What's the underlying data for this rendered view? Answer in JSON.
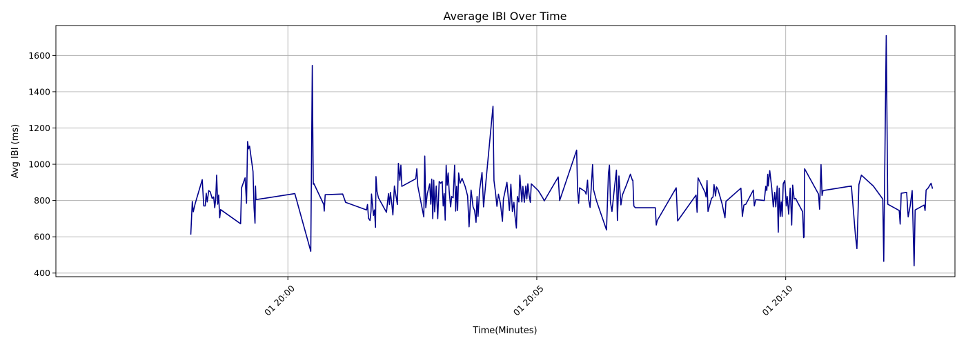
{
  "chart_data": {
    "type": "line",
    "title": "Average IBI Over Time",
    "xlabel": "Time(Minutes)",
    "ylabel": "Avg IBI (ms)",
    "grid": true,
    "legend": "none",
    "color": "#00008b",
    "xlim": [
      -4.66,
      13.4
    ],
    "ylim": [
      380,
      1765
    ],
    "x_ticks": [
      {
        "value": 0,
        "label": "01 20:00"
      },
      {
        "value": 5,
        "label": "01 20:05"
      },
      {
        "value": 10,
        "label": "01 20:10"
      }
    ],
    "y_ticks": [
      400,
      600,
      800,
      1000,
      1200,
      1400,
      1600
    ],
    "x_unit_note": "minutes relative to 01 20:00",
    "series": [
      {
        "name": "",
        "points": [
          [
            -1.95,
            612
          ],
          [
            -1.92,
            795
          ],
          [
            -1.9,
            738
          ],
          [
            -1.86,
            785
          ],
          [
            -1.72,
            915
          ],
          [
            -1.69,
            770
          ],
          [
            -1.66,
            770
          ],
          [
            -1.64,
            840
          ],
          [
            -1.62,
            792
          ],
          [
            -1.59,
            855
          ],
          [
            -1.56,
            848
          ],
          [
            -1.52,
            812
          ],
          [
            -1.49,
            820
          ],
          [
            -1.47,
            760
          ],
          [
            -1.45,
            808
          ],
          [
            -1.43,
            940
          ],
          [
            -1.41,
            780
          ],
          [
            -1.39,
            830
          ],
          [
            -1.37,
            705
          ],
          [
            -1.35,
            750
          ],
          [
            -0.95,
            672
          ],
          [
            -0.93,
            870
          ],
          [
            -0.86,
            925
          ],
          [
            -0.83,
            785
          ],
          [
            -0.81,
            1125
          ],
          [
            -0.79,
            1085
          ],
          [
            -0.77,
            1100
          ],
          [
            -0.7,
            960
          ],
          [
            -0.68,
            760
          ],
          [
            -0.66,
            675
          ],
          [
            -0.65,
            880
          ],
          [
            -0.64,
            805
          ],
          [
            0.14,
            838
          ],
          [
            0.46,
            520
          ],
          [
            0.49,
            1545
          ],
          [
            0.5,
            1200
          ],
          [
            0.51,
            890
          ],
          [
            0.52,
            895
          ],
          [
            0.72,
            778
          ],
          [
            0.73,
            742
          ],
          [
            0.75,
            832
          ],
          [
            1.1,
            836
          ],
          [
            1.16,
            790
          ],
          [
            1.58,
            748
          ],
          [
            1.6,
            778
          ],
          [
            1.62,
            702
          ],
          [
            1.65,
            690
          ],
          [
            1.67,
            742
          ],
          [
            1.68,
            836
          ],
          [
            1.72,
            718
          ],
          [
            1.74,
            748
          ],
          [
            1.76,
            652
          ],
          [
            1.77,
            932
          ],
          [
            1.79,
            850
          ],
          [
            1.82,
            815
          ],
          [
            1.98,
            735
          ],
          [
            2.02,
            838
          ],
          [
            2.04,
            778
          ],
          [
            2.06,
            845
          ],
          [
            2.09,
            775
          ],
          [
            2.11,
            720
          ],
          [
            2.14,
            880
          ],
          [
            2.2,
            778
          ],
          [
            2.22,
            1005
          ],
          [
            2.25,
            912
          ],
          [
            2.27,
            995
          ],
          [
            2.29,
            878
          ],
          [
            2.57,
            920
          ],
          [
            2.59,
            975
          ],
          [
            2.61,
            880
          ],
          [
            2.73,
            710
          ],
          [
            2.75,
            1045
          ],
          [
            2.77,
            760
          ],
          [
            2.8,
            836
          ],
          [
            2.85,
            892
          ],
          [
            2.87,
            780
          ],
          [
            2.89,
            918
          ],
          [
            2.91,
            700
          ],
          [
            2.93,
            912
          ],
          [
            2.95,
            738
          ],
          [
            2.98,
            880
          ],
          [
            3.01,
            700
          ],
          [
            3.04,
            905
          ],
          [
            3.07,
            895
          ],
          [
            3.1,
            905
          ],
          [
            3.12,
            770
          ],
          [
            3.14,
            838
          ],
          [
            3.16,
            692
          ],
          [
            3.18,
            995
          ],
          [
            3.2,
            885
          ],
          [
            3.22,
            952
          ],
          [
            3.24,
            850
          ],
          [
            3.27,
            765
          ],
          [
            3.29,
            822
          ],
          [
            3.32,
            815
          ],
          [
            3.35,
            995
          ],
          [
            3.37,
            742
          ],
          [
            3.39,
            878
          ],
          [
            3.41,
            745
          ],
          [
            3.43,
            952
          ],
          [
            3.46,
            895
          ],
          [
            3.5,
            922
          ],
          [
            3.56,
            878
          ],
          [
            3.61,
            825
          ],
          [
            3.64,
            655
          ],
          [
            3.68,
            858
          ],
          [
            3.72,
            765
          ],
          [
            3.75,
            745
          ],
          [
            3.78,
            680
          ],
          [
            3.8,
            822
          ],
          [
            3.82,
            712
          ],
          [
            3.85,
            855
          ],
          [
            3.9,
            955
          ],
          [
            3.93,
            765
          ],
          [
            4.12,
            1320
          ],
          [
            4.14,
            910
          ],
          [
            4.17,
            845
          ],
          [
            4.2,
            768
          ],
          [
            4.23,
            835
          ],
          [
            4.27,
            782
          ],
          [
            4.31,
            685
          ],
          [
            4.33,
            808
          ],
          [
            4.4,
            900
          ],
          [
            4.45,
            745
          ],
          [
            4.48,
            890
          ],
          [
            4.51,
            740
          ],
          [
            4.54,
            790
          ],
          [
            4.56,
            720
          ],
          [
            4.59,
            648
          ],
          [
            4.61,
            822
          ],
          [
            4.64,
            792
          ],
          [
            4.66,
            940
          ],
          [
            4.7,
            792
          ],
          [
            4.72,
            878
          ],
          [
            4.75,
            790
          ],
          [
            4.78,
            880
          ],
          [
            4.8,
            808
          ],
          [
            4.82,
            892
          ],
          [
            4.85,
            822
          ],
          [
            4.87,
            790
          ],
          [
            4.89,
            892
          ],
          [
            5.03,
            855
          ],
          [
            5.12,
            815
          ],
          [
            5.15,
            798
          ],
          [
            5.43,
            930
          ],
          [
            5.46,
            800
          ],
          [
            5.8,
            1078
          ],
          [
            5.82,
            855
          ],
          [
            5.84,
            785
          ],
          [
            5.86,
            870
          ],
          [
            5.97,
            850
          ],
          [
            5.99,
            835
          ],
          [
            6.02,
            912
          ],
          [
            6.04,
            808
          ],
          [
            6.07,
            762
          ],
          [
            6.12,
            998
          ],
          [
            6.14,
            860
          ],
          [
            6.2,
            798
          ],
          [
            6.4,
            638
          ],
          [
            6.44,
            950
          ],
          [
            6.46,
            995
          ],
          [
            6.48,
            792
          ],
          [
            6.51,
            740
          ],
          [
            6.56,
            870
          ],
          [
            6.6,
            968
          ],
          [
            6.62,
            690
          ],
          [
            6.65,
            935
          ],
          [
            6.69,
            776
          ],
          [
            6.72,
            830
          ],
          [
            6.8,
            885
          ],
          [
            6.88,
            945
          ],
          [
            6.92,
            912
          ],
          [
            6.93,
            912
          ],
          [
            6.95,
            770
          ],
          [
            6.98,
            760
          ],
          [
            7.38,
            760
          ],
          [
            7.4,
            665
          ],
          [
            7.42,
            690
          ],
          [
            7.8,
            870
          ],
          [
            7.83,
            688
          ],
          [
            8.2,
            830
          ],
          [
            8.22,
            735
          ],
          [
            8.24,
            925
          ],
          [
            8.38,
            845
          ],
          [
            8.4,
            820
          ],
          [
            8.42,
            910
          ],
          [
            8.44,
            740
          ],
          [
            8.51,
            812
          ],
          [
            8.54,
            820
          ],
          [
            8.56,
            888
          ],
          [
            8.59,
            825
          ],
          [
            8.61,
            875
          ],
          [
            8.64,
            860
          ],
          [
            8.72,
            785
          ],
          [
            8.78,
            705
          ],
          [
            8.8,
            795
          ],
          [
            9.1,
            868
          ],
          [
            9.13,
            712
          ],
          [
            9.16,
            775
          ],
          [
            9.2,
            780
          ],
          [
            9.35,
            858
          ],
          [
            9.37,
            770
          ],
          [
            9.4,
            805
          ],
          [
            9.57,
            800
          ],
          [
            9.6,
            878
          ],
          [
            9.62,
            855
          ],
          [
            9.64,
            945
          ],
          [
            9.65,
            880
          ],
          [
            9.68,
            965
          ],
          [
            9.72,
            868
          ],
          [
            9.75,
            765
          ],
          [
            9.78,
            845
          ],
          [
            9.8,
            765
          ],
          [
            9.83,
            880
          ],
          [
            9.85,
            625
          ],
          [
            9.87,
            868
          ],
          [
            9.89,
            712
          ],
          [
            9.91,
            792
          ],
          [
            9.93,
            712
          ],
          [
            9.95,
            892
          ],
          [
            9.98,
            910
          ],
          [
            10.0,
            830
          ],
          [
            10.01,
            770
          ],
          [
            10.03,
            822
          ],
          [
            10.06,
            725
          ],
          [
            10.09,
            868
          ],
          [
            10.12,
            665
          ],
          [
            10.14,
            885
          ],
          [
            10.17,
            808
          ],
          [
            10.2,
            812
          ],
          [
            10.22,
            800
          ],
          [
            10.34,
            738
          ],
          [
            10.36,
            595
          ],
          [
            10.37,
            600
          ],
          [
            10.38,
            975
          ],
          [
            10.66,
            835
          ],
          [
            10.68,
            752
          ],
          [
            10.71,
            998
          ],
          [
            10.73,
            828
          ],
          [
            10.75,
            855
          ],
          [
            11.32,
            880
          ],
          [
            11.4,
            610
          ],
          [
            11.43,
            535
          ],
          [
            11.47,
            888
          ],
          [
            11.52,
            940
          ],
          [
            11.76,
            880
          ],
          [
            11.95,
            808
          ],
          [
            11.97,
            465
          ],
          [
            12.02,
            1710
          ],
          [
            12.05,
            780
          ],
          [
            12.28,
            745
          ],
          [
            12.3,
            670
          ],
          [
            12.32,
            840
          ],
          [
            12.43,
            845
          ],
          [
            12.46,
            710
          ],
          [
            12.5,
            770
          ],
          [
            12.52,
            812
          ],
          [
            12.54,
            855
          ],
          [
            12.58,
            440
          ],
          [
            12.6,
            748
          ],
          [
            12.78,
            775
          ],
          [
            12.8,
            745
          ],
          [
            12.82,
            858
          ],
          [
            12.86,
            868
          ],
          [
            12.92,
            895
          ],
          [
            12.95,
            865
          ]
        ]
      }
    ]
  }
}
